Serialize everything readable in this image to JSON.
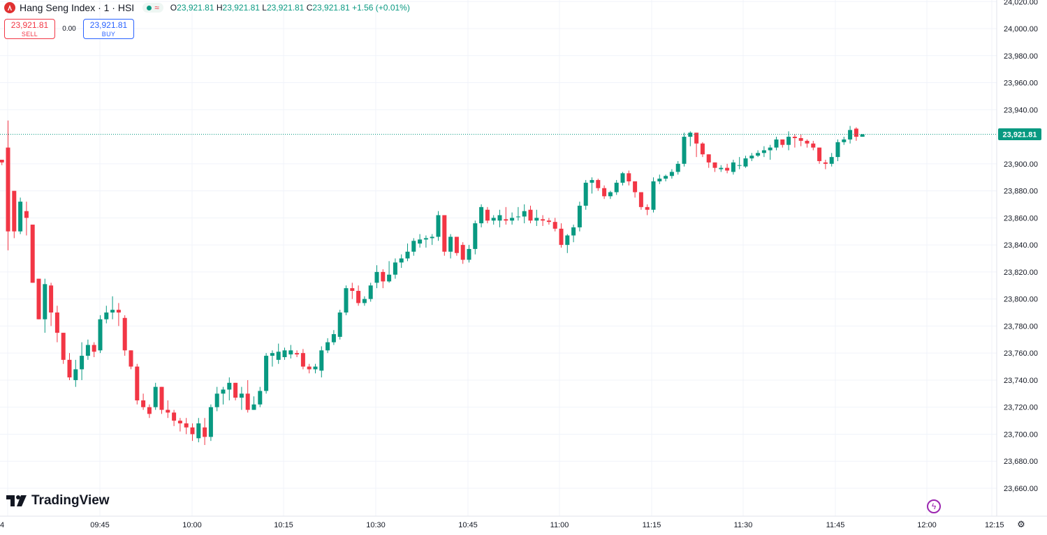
{
  "header": {
    "symbol_title": "Hang Seng Index · 1 · HSI",
    "ohlc": {
      "o_label": "O",
      "o": "23,921.81",
      "h_label": "H",
      "h": "23,921.81",
      "l_label": "L",
      "l": "23,921.81",
      "c_label": "C",
      "c": "23,921.81",
      "change": "+1.56 (+0.01%)"
    },
    "market_status_icon": "wave-icon"
  },
  "trade": {
    "sell_price": "23,921.81",
    "sell_label": "SELL",
    "spread": "0.00",
    "buy_price": "23,921.81",
    "buy_label": "BUY"
  },
  "branding": {
    "name": "TradingView"
  },
  "colors": {
    "up": "#089981",
    "down": "#f23645",
    "grid": "#f0f3fa",
    "text": "#131722",
    "price_line": "#089981"
  },
  "chart_data": {
    "type": "candlestick",
    "instrument": "Hang Seng Index",
    "interval": "1",
    "last_price": 23921.81,
    "last_price_label": "23,921.81",
    "y_ticks": [
      24020,
      24000,
      23980,
      23960,
      23940,
      23900,
      23880,
      23860,
      23840,
      23820,
      23800,
      23780,
      23760,
      23740,
      23720,
      23700,
      23680,
      23660
    ],
    "y_tick_labels": [
      "24,020.00",
      "24,000.00",
      "23,980.00",
      "23,960.00",
      "23,940.00",
      "23,900.00",
      "23,880.00",
      "23,860.00",
      "23,840.00",
      "23,820.00",
      "23,800.00",
      "23,780.00",
      "23,760.00",
      "23,740.00",
      "23,720.00",
      "23,700.00",
      "23,680.00",
      "23,660.00"
    ],
    "ylim": [
      23650,
      24025
    ],
    "x_ticks": [
      "09:45",
      "10:00",
      "10:15",
      "10:30",
      "10:45",
      "11:00",
      "11:15",
      "11:30",
      "11:45",
      "12:00"
    ],
    "x_first_label": "4",
    "x_last_label": "12:15",
    "x_start": "09:30",
    "candle_minutes": 1,
    "candles": [
      [
        23903,
        23903,
        23899,
        23901
      ],
      [
        23912,
        23932,
        23836,
        23850
      ],
      [
        23880,
        23880,
        23845,
        23850
      ],
      [
        23850,
        23875,
        23848,
        23872
      ],
      [
        23865,
        23872,
        23847,
        23860
      ],
      [
        23855,
        23855,
        23812,
        23812
      ],
      [
        23815,
        23815,
        23785,
        23785
      ],
      [
        23785,
        23815,
        23775,
        23811
      ],
      [
        23810,
        23812,
        23780,
        23790
      ],
      [
        23790,
        23795,
        23768,
        23775
      ],
      [
        23775,
        23775,
        23752,
        23755
      ],
      [
        23755,
        23760,
        23740,
        23742
      ],
      [
        23740,
        23755,
        23735,
        23748
      ],
      [
        23748,
        23768,
        23740,
        23758
      ],
      [
        23758,
        23770,
        23755,
        23766
      ],
      [
        23766,
        23768,
        23757,
        23761
      ],
      [
        23762,
        23788,
        23760,
        23785
      ],
      [
        23785,
        23795,
        23782,
        23790
      ],
      [
        23790,
        23802,
        23785,
        23792
      ],
      [
        23792,
        23797,
        23780,
        23790
      ],
      [
        23786,
        23788,
        23758,
        23762
      ],
      [
        23762,
        23762,
        23748,
        23750
      ],
      [
        23750,
        23752,
        23722,
        23725
      ],
      [
        23725,
        23730,
        23718,
        23720
      ],
      [
        23720,
        23722,
        23712,
        23715
      ],
      [
        23720,
        23738,
        23718,
        23735
      ],
      [
        23735,
        23735,
        23715,
        23718
      ],
      [
        23718,
        23725,
        23712,
        23716
      ],
      [
        23716,
        23718,
        23706,
        23710
      ],
      [
        23710,
        23712,
        23702,
        23708
      ],
      [
        23708,
        23712,
        23700,
        23705
      ],
      [
        23705,
        23708,
        23695,
        23700
      ],
      [
        23697,
        23712,
        23694,
        23708
      ],
      [
        23705,
        23712,
        23692,
        23698
      ],
      [
        23698,
        23722,
        23695,
        23720
      ],
      [
        23720,
        23735,
        23717,
        23730
      ],
      [
        23730,
        23735,
        23722,
        23733
      ],
      [
        23733,
        23742,
        23725,
        23738
      ],
      [
        23738,
        23738,
        23725,
        23727
      ],
      [
        23727,
        23735,
        23718,
        23730
      ],
      [
        23730,
        23740,
        23716,
        23718
      ],
      [
        23718,
        23728,
        23718,
        23722
      ],
      [
        23722,
        23735,
        23720,
        23732
      ],
      [
        23732,
        23760,
        23730,
        23758
      ],
      [
        23758,
        23762,
        23750,
        23760
      ],
      [
        23755,
        23767,
        23752,
        23761
      ],
      [
        23757,
        23764,
        23755,
        23762
      ],
      [
        23759,
        23766,
        23756,
        23762
      ],
      [
        23760,
        23762,
        23757,
        23759
      ],
      [
        23760,
        23763,
        23748,
        23750
      ],
      [
        23750,
        23752,
        23745,
        23748
      ],
      [
        23748,
        23752,
        23745,
        23750
      ],
      [
        23747,
        23765,
        23742,
        23762
      ],
      [
        23762,
        23771,
        23760,
        23768
      ],
      [
        23768,
        23777,
        23766,
        23774
      ],
      [
        23772,
        23792,
        23770,
        23790
      ],
      [
        23790,
        23810,
        23788,
        23808
      ],
      [
        23808,
        23812,
        23800,
        23806
      ],
      [
        23806,
        23810,
        23795,
        23797
      ],
      [
        23797,
        23802,
        23795,
        23800
      ],
      [
        23800,
        23812,
        23798,
        23810
      ],
      [
        23812,
        23825,
        23808,
        23820
      ],
      [
        23820,
        23822,
        23808,
        23813
      ],
      [
        23813,
        23828,
        23812,
        23818
      ],
      [
        23818,
        23830,
        23815,
        23827
      ],
      [
        23827,
        23833,
        23823,
        23830
      ],
      [
        23830,
        23841,
        23828,
        23835
      ],
      [
        23835,
        23845,
        23832,
        23843
      ],
      [
        23841,
        23848,
        23838,
        23844
      ],
      [
        23844,
        23847,
        23838,
        23845
      ],
      [
        23845,
        23848,
        23840,
        23846
      ],
      [
        23846,
        23865,
        23843,
        23862
      ],
      [
        23862,
        23862,
        23832,
        23835
      ],
      [
        23835,
        23848,
        23830,
        23846
      ],
      [
        23846,
        23846,
        23832,
        23834
      ],
      [
        23840,
        23842,
        23826,
        23829
      ],
      [
        23829,
        23840,
        23827,
        23837
      ],
      [
        23837,
        23858,
        23833,
        23856
      ],
      [
        23856,
        23870,
        23853,
        23868
      ],
      [
        23866,
        23868,
        23856,
        23858
      ],
      [
        23858,
        23862,
        23855,
        23860
      ],
      [
        23858,
        23866,
        23853,
        23862
      ],
      [
        23859,
        23868,
        23855,
        23858
      ],
      [
        23858,
        23864,
        23855,
        23860
      ],
      [
        23861,
        23868,
        23858,
        23861
      ],
      [
        23861,
        23870,
        23856,
        23865
      ],
      [
        23866,
        23869,
        23856,
        23858
      ],
      [
        23858,
        23866,
        23854,
        23860
      ],
      [
        23859,
        23862,
        23854,
        23858
      ],
      [
        23858,
        23860,
        23855,
        23857
      ],
      [
        23857,
        23860,
        23850,
        23852
      ],
      [
        23852,
        23856,
        23838,
        23840
      ],
      [
        23840,
        23848,
        23834,
        23847
      ],
      [
        23847,
        23855,
        23842,
        23853
      ],
      [
        23853,
        23872,
        23850,
        23869
      ],
      [
        23869,
        23888,
        23866,
        23886
      ],
      [
        23886,
        23890,
        23878,
        23888
      ],
      [
        23888,
        23889,
        23880,
        23882
      ],
      [
        23882,
        23884,
        23874,
        23876
      ],
      [
        23876,
        23880,
        23874,
        23879
      ],
      [
        23879,
        23888,
        23877,
        23886
      ],
      [
        23886,
        23894,
        23884,
        23893
      ],
      [
        23893,
        23895,
        23884,
        23887
      ],
      [
        23887,
        23887,
        23875,
        23879
      ],
      [
        23879,
        23879,
        23866,
        23868
      ],
      [
        23868,
        23870,
        23862,
        23866
      ],
      [
        23866,
        23890,
        23864,
        23887
      ],
      [
        23887,
        23892,
        23885,
        23889
      ],
      [
        23889,
        23892,
        23887,
        23891
      ],
      [
        23891,
        23896,
        23889,
        23894
      ],
      [
        23894,
        23902,
        23892,
        23900
      ],
      [
        23900,
        23923,
        23898,
        23920
      ],
      [
        23920,
        23924,
        23913,
        23923
      ],
      [
        23923,
        23923,
        23905,
        23915
      ],
      [
        23915,
        23916,
        23905,
        23907
      ],
      [
        23907,
        23907,
        23897,
        23901
      ],
      [
        23901,
        23901,
        23894,
        23897
      ],
      [
        23896,
        23899,
        23894,
        23897
      ],
      [
        23897,
        23900,
        23893,
        23895
      ],
      [
        23894,
        23903,
        23892,
        23901
      ],
      [
        23899,
        23905,
        23896,
        23899
      ],
      [
        23898,
        23906,
        23897,
        23904
      ],
      [
        23904,
        23908,
        23902,
        23906
      ],
      [
        23906,
        23910,
        23905,
        23908
      ],
      [
        23908,
        23913,
        23905,
        23910
      ],
      [
        23910,
        23914,
        23903,
        23912
      ],
      [
        23912,
        23920,
        23910,
        23918
      ],
      [
        23918,
        23918,
        23912,
        23914
      ],
      [
        23914,
        23924,
        23910,
        23920
      ],
      [
        23920,
        23922,
        23912,
        23919
      ],
      [
        23919,
        23922,
        23913,
        23917
      ],
      [
        23917,
        23918,
        23912,
        23915
      ],
      [
        23915,
        23917,
        23910,
        23912
      ],
      [
        23912,
        23912,
        23900,
        23902
      ],
      [
        23901,
        23903,
        23896,
        23900
      ],
      [
        23900,
        23908,
        23898,
        23905
      ],
      [
        23905,
        23918,
        23902,
        23916
      ],
      [
        23916,
        23920,
        23914,
        23918
      ],
      [
        23918,
        23928,
        23915,
        23925
      ],
      [
        23926,
        23927,
        23917,
        23920
      ],
      [
        23920,
        23922,
        23920,
        23921.81
      ]
    ]
  }
}
